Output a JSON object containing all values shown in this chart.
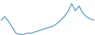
{
  "y_values": [
    2.4,
    2.7,
    2.3,
    1.8,
    1.3,
    1.2,
    1.2,
    1.3,
    1.3,
    1.4,
    1.5,
    1.6,
    1.7,
    1.8,
    1.9,
    2.1,
    2.4,
    2.7,
    3.1,
    3.8,
    3.2,
    3.6,
    3.0,
    2.7,
    2.5,
    2.4
  ],
  "line_color": "#3a93c8",
  "background_color": "#ffffff",
  "linewidth": 0.8
}
